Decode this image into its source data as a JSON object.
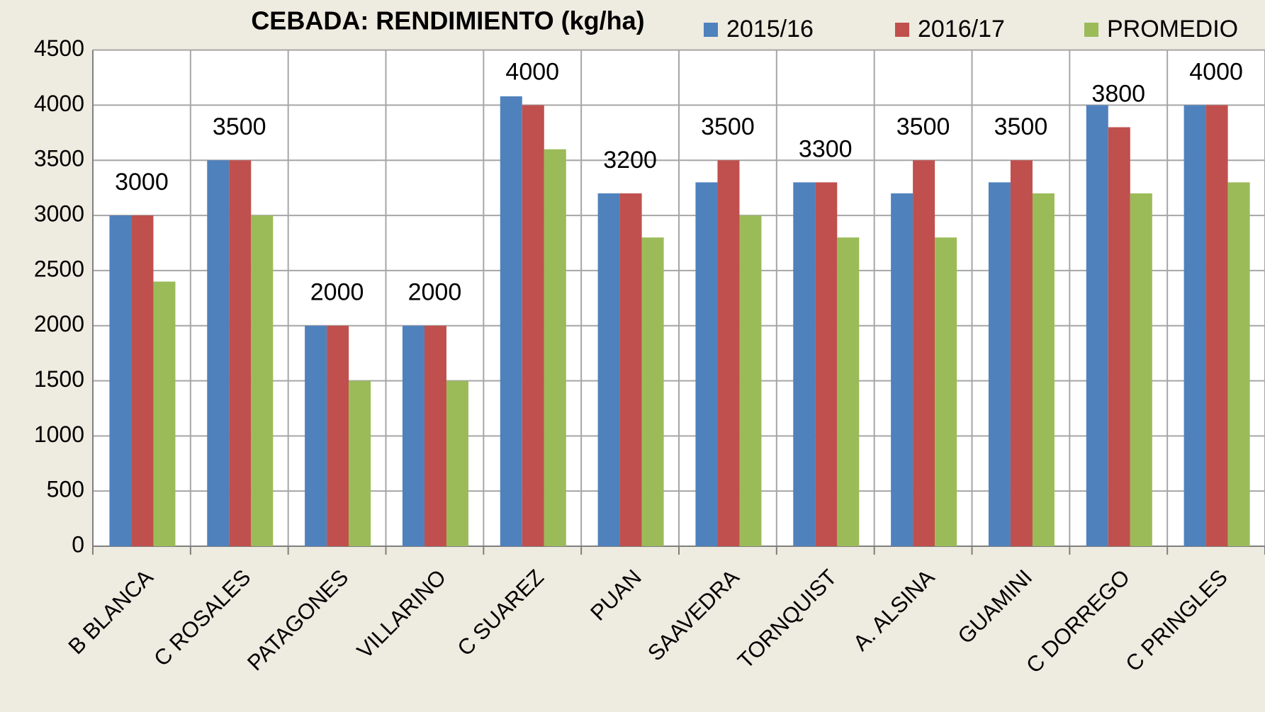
{
  "chart_data": {
    "type": "bar",
    "title": "CEBADA:  RENDIMIENTO (kg/ha)",
    "categories": [
      "B BLANCA",
      "C ROSALES",
      "PATAGONES",
      "VILLARINO",
      "C SUAREZ",
      "PUAN",
      "SAAVEDRA",
      "TORNQUIST",
      "A. ALSINA",
      "GUAMINI",
      "C DORREGO",
      "C PRINGLES"
    ],
    "series": [
      {
        "name": "2015/16",
        "color": "#4f81bd",
        "values": [
          3000,
          3500,
          2000,
          2000,
          4080,
          3200,
          3300,
          3300,
          3200,
          3300,
          4000,
          4000
        ]
      },
      {
        "name": "2016/17",
        "color": "#c0504d",
        "values": [
          3000,
          3500,
          2000,
          2000,
          4000,
          3200,
          3500,
          3300,
          3500,
          3500,
          3800,
          4000
        ]
      },
      {
        "name": "PROMEDIO",
        "color": "#9bbb59",
        "values": [
          2400,
          3000,
          1500,
          1500,
          3600,
          2800,
          3000,
          2800,
          2800,
          3200,
          3200,
          3300
        ]
      }
    ],
    "ylim": [
      0,
      4500
    ],
    "yticks": [
      0,
      500,
      1000,
      1500,
      2000,
      2500,
      3000,
      3500,
      4000,
      4500
    ],
    "grid": true,
    "legend": "top-right",
    "data_labels_series": 1
  }
}
